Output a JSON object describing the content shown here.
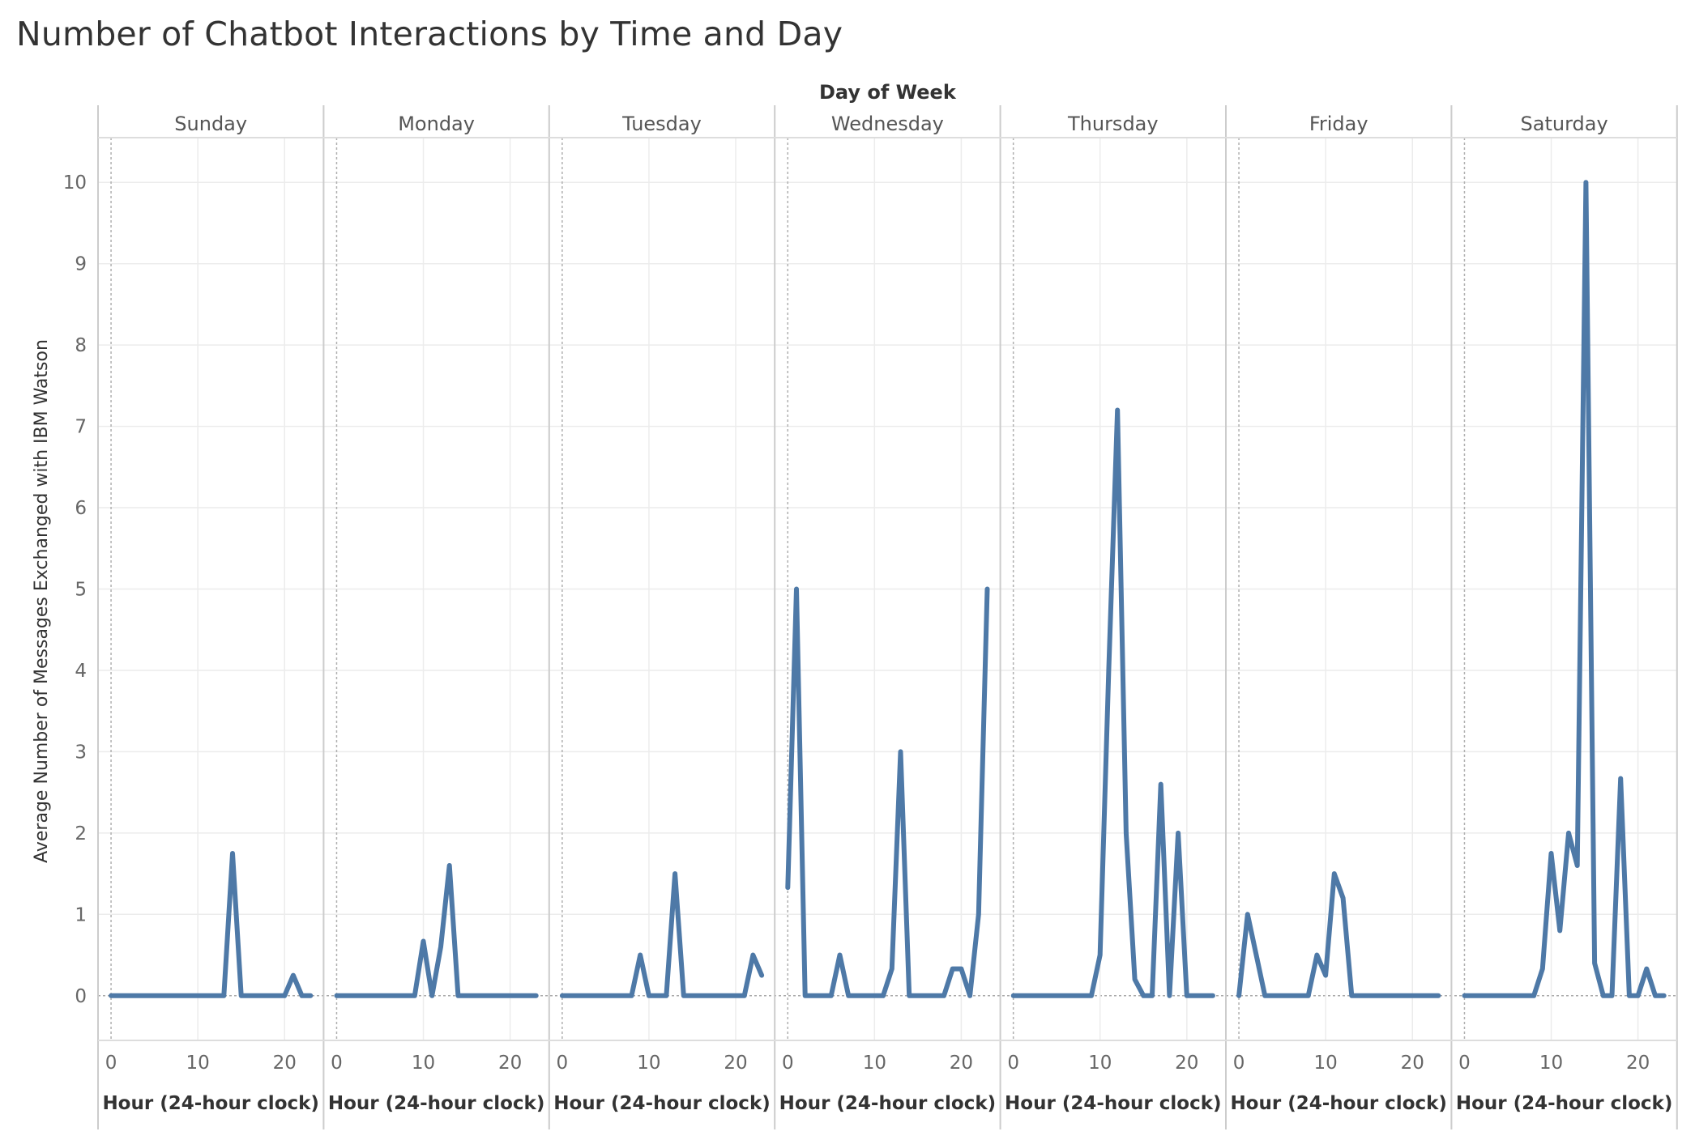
{
  "chart_data": {
    "type": "line",
    "title": "Number of Chatbot Interactions by Time and Day",
    "column_header": "Day of Week",
    "xlabel": "Hour (24-hour clock)",
    "ylabel": "Average Number of Messages Exchanged with IBM Watson",
    "xlim": [
      -1.5,
      24.5
    ],
    "ylim": [
      -0.55,
      10.55
    ],
    "xticks": [
      0,
      10,
      20
    ],
    "yticks": [
      0,
      1,
      2,
      3,
      4,
      5,
      6,
      7,
      8,
      9,
      10
    ],
    "grid": true,
    "line_color": "#4e79a7",
    "panels": [
      {
        "name": "Sunday",
        "x": [
          0,
          1,
          2,
          3,
          4,
          5,
          6,
          7,
          8,
          9,
          10,
          11,
          12,
          13,
          14,
          15,
          16,
          17,
          18,
          19,
          20,
          21,
          22,
          23
        ],
        "y": [
          0,
          0,
          0,
          0,
          0,
          0,
          0,
          0,
          0,
          0,
          0,
          0,
          0,
          0,
          1.75,
          0,
          0,
          0,
          0,
          0,
          0,
          0.25,
          0,
          0
        ]
      },
      {
        "name": "Monday",
        "x": [
          0,
          1,
          2,
          3,
          4,
          5,
          6,
          7,
          8,
          9,
          10,
          11,
          12,
          13,
          14,
          15,
          16,
          17,
          18,
          19,
          20,
          21,
          22,
          23
        ],
        "y": [
          0,
          0,
          0,
          0,
          0,
          0,
          0,
          0,
          0,
          0,
          0.67,
          0,
          0.6,
          1.6,
          0,
          0,
          0,
          0,
          0,
          0,
          0,
          0,
          0,
          0
        ]
      },
      {
        "name": "Tuesday",
        "x": [
          0,
          1,
          2,
          3,
          4,
          5,
          6,
          7,
          8,
          9,
          10,
          11,
          12,
          13,
          14,
          15,
          16,
          17,
          18,
          19,
          20,
          21,
          22,
          23
        ],
        "y": [
          0,
          0,
          0,
          0,
          0,
          0,
          0,
          0,
          0,
          0.5,
          0,
          0,
          0,
          1.5,
          0,
          0,
          0,
          0,
          0,
          0,
          0,
          0,
          0.5,
          0.25
        ]
      },
      {
        "name": "Wednesday",
        "x": [
          0,
          1,
          2,
          3,
          4,
          5,
          6,
          7,
          8,
          9,
          10,
          11,
          12,
          13,
          14,
          15,
          16,
          17,
          18,
          19,
          20,
          21,
          22,
          23
        ],
        "y": [
          1.33,
          5,
          0,
          0,
          0,
          0,
          0.5,
          0,
          0,
          0,
          0,
          0,
          0.33,
          3,
          0,
          0,
          0,
          0,
          0,
          0.33,
          0.33,
          0,
          1,
          5
        ]
      },
      {
        "name": "Thursday",
        "x": [
          0,
          1,
          2,
          3,
          4,
          5,
          6,
          7,
          8,
          9,
          10,
          11,
          12,
          13,
          14,
          15,
          16,
          17,
          18,
          19,
          20,
          21,
          22,
          23
        ],
        "y": [
          0,
          0,
          0,
          0,
          0,
          0,
          0,
          0,
          0,
          0,
          0.5,
          4,
          7.2,
          2,
          0.2,
          0,
          0,
          2.6,
          0,
          2,
          0,
          0,
          0,
          0
        ]
      },
      {
        "name": "Friday",
        "x": [
          0,
          1,
          2,
          3,
          4,
          5,
          6,
          7,
          8,
          9,
          10,
          11,
          12,
          13,
          14,
          15,
          16,
          17,
          18,
          19,
          20,
          21,
          22,
          23
        ],
        "y": [
          0,
          1,
          0.5,
          0,
          0,
          0,
          0,
          0,
          0,
          0.5,
          0.25,
          1.5,
          1.2,
          0,
          0,
          0,
          0,
          0,
          0,
          0,
          0,
          0,
          0,
          0
        ]
      },
      {
        "name": "Saturday",
        "x": [
          0,
          1,
          2,
          3,
          4,
          5,
          6,
          7,
          8,
          9,
          10,
          11,
          12,
          13,
          14,
          15,
          16,
          17,
          18,
          19,
          20,
          21,
          22,
          23
        ],
        "y": [
          0,
          0,
          0,
          0,
          0,
          0,
          0,
          0,
          0,
          0.33,
          1.75,
          0.8,
          2,
          1.6,
          10,
          0.4,
          0,
          0,
          2.67,
          0,
          0,
          0.33,
          0,
          0
        ]
      }
    ]
  }
}
